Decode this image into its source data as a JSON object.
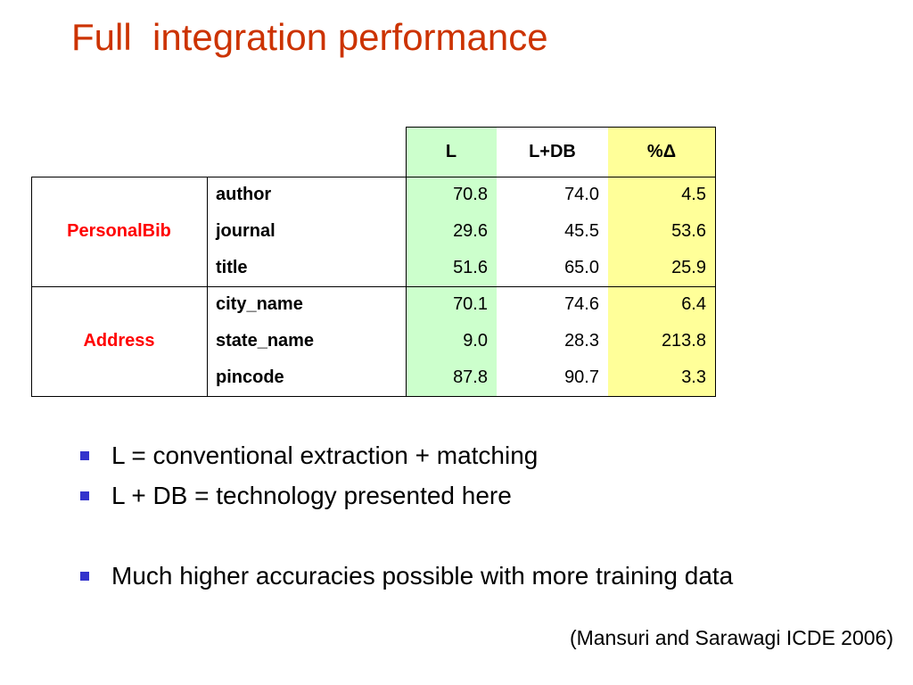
{
  "title": "Full  integration performance",
  "table": {
    "columns": [
      "L",
      "L+DB",
      "%Δ"
    ],
    "groups": [
      {
        "name": "PersonalBib",
        "rows": [
          {
            "field": "author",
            "cells": [
              "70.8",
              "74.0",
              "4.5"
            ]
          },
          {
            "field": "journal",
            "cells": [
              "29.6",
              "45.5",
              "53.6"
            ]
          },
          {
            "field": "title",
            "cells": [
              "51.6",
              "65.0",
              "25.9"
            ]
          }
        ]
      },
      {
        "name": "Address",
        "rows": [
          {
            "field": "city_name",
            "cells": [
              "70.1",
              "74.6",
              "6.4"
            ]
          },
          {
            "field": "state_name",
            "cells": [
              "9.0",
              "28.3",
              "213.8"
            ]
          },
          {
            "field": "pincode",
            "cells": [
              "87.8",
              "90.7",
              "3.3"
            ]
          }
        ]
      }
    ]
  },
  "bullets": [
    "L = conventional extraction + matching",
    "L + DB = technology presented here",
    "Much higher accuracies possible with more training data"
  ],
  "citation": "(Mansuri and Sarawagi ICDE 2006)"
}
